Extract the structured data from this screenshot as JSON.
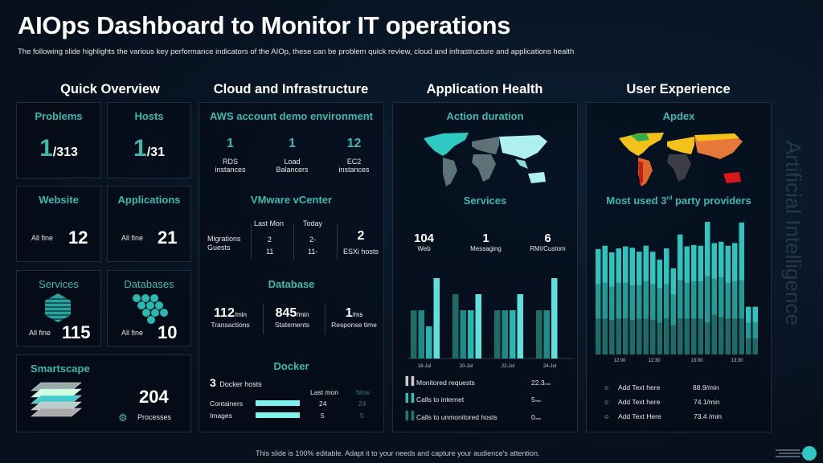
{
  "header": {
    "title": "AIOps Dashboard to Monitor IT operations",
    "subtitle": "The following  slide highlights the various  key performance  indicators of the AIOp, these can be problem  quick review,  cloud and infrastructure  and applications health"
  },
  "columns": [
    "Quick Overview",
    "Cloud and Infrastructure",
    "Application Health",
    "User Experience"
  ],
  "watermark": "Artificial Intelligence",
  "footer": "This slide is 100% editable. Adapt it to your needs and capture your audience's attention.",
  "colors": {
    "accent": "#3fb8ae",
    "bar_light": "#5ee0dc",
    "bar_dark": "#1f6b66"
  },
  "quick": {
    "problems": {
      "label": "Problems",
      "value": "1",
      "total": "/313"
    },
    "hosts": {
      "label": "Hosts",
      "value": "1",
      "total": "/31"
    },
    "website": {
      "label": "Website",
      "status": "All fine",
      "value": "12"
    },
    "applications": {
      "label": "Applications",
      "status": "All fine",
      "value": "21"
    },
    "services": {
      "label": "Services",
      "status": "All fine",
      "value": "115",
      "icon": "hexagon-cluster-icon"
    },
    "databases": {
      "label": "Databases",
      "status": "All fine",
      "value": "10",
      "icon": "hexagon-cluster-icon"
    },
    "smartscape": {
      "label": "Smartscape",
      "value": "204",
      "sub": "Processes",
      "icon": "layers-icon"
    }
  },
  "cloud": {
    "aws": {
      "title": "AWS account demo environment",
      "items": [
        {
          "value": "1",
          "l1": "RDS",
          "l2": "instances"
        },
        {
          "value": "1",
          "l1": "Load",
          "l2": "Balancers"
        },
        {
          "value": "12",
          "l1": "EC2",
          "l2": "instances"
        }
      ]
    },
    "vmware": {
      "title": "VMware vCenter",
      "col1": "Last Mon",
      "col2": "Today",
      "row1": "Migrations",
      "row2": "Guests",
      "lm1": "2",
      "lm2": "11",
      "td1": "2-",
      "td2": "11-",
      "esxi_value": "2",
      "esxi_label": "ESXi  hosts"
    },
    "database": {
      "title": "Database",
      "items": [
        {
          "value": "112",
          "unit": "/min",
          "label": "Transactions"
        },
        {
          "value": "845",
          "unit": "/min",
          "label": "Statements"
        },
        {
          "value": "1",
          "unit": "/ms",
          "label": "Response time"
        }
      ]
    },
    "docker": {
      "title": "Docker",
      "hosts_value": "3",
      "hosts_label": "Docker hosts",
      "col1": "Last mon",
      "col2": "Now",
      "rows": [
        {
          "label": "Containers",
          "last": "24",
          "now": "24"
        },
        {
          "label": "Images",
          "last": "5",
          "now": "5"
        }
      ]
    }
  },
  "apphealth": {
    "map_title": "Action duration",
    "services_title": "Services",
    "services": [
      {
        "value": "104",
        "label": "Web"
      },
      {
        "value": "1",
        "label": "Messaging"
      },
      {
        "value": "6",
        "label": "RMI/Custom"
      }
    ],
    "legend": [
      {
        "label": "Monitored requests",
        "value": "22.3",
        "unit": "/min"
      },
      {
        "label": "Calls to internet",
        "value": "5",
        "unit": "/min"
      },
      {
        "label": "Calls to unmonitored hosts",
        "value": "0",
        "unit": "/min"
      }
    ]
  },
  "userexp": {
    "map_title": "Apdex",
    "providers_title": "Most used 3",
    "providers_sup": "rd",
    "providers_rest": " party providers",
    "legend": [
      {
        "label": "Add Text here",
        "value": "88.9/min"
      },
      {
        "label": "Add Text here",
        "value": "74.1/min"
      },
      {
        "label": "Add Text Here",
        "value": "73.4 /min"
      }
    ]
  },
  "chart_data": [
    {
      "type": "bar",
      "categories": [
        "18-Jul",
        "20-Jul",
        "22-Jul",
        "24-Jul"
      ],
      "groups": [
        [
          60,
          60,
          40,
          100
        ],
        [
          80,
          60,
          60,
          80
        ],
        [
          60,
          60,
          60,
          80
        ],
        [
          60,
          60,
          100
        ]
      ],
      "ylim": [
        0,
        100
      ]
    },
    {
      "type": "bar",
      "stacked": true,
      "tick_labels": [
        "12:00",
        "12:30",
        "13:00",
        "13:30"
      ],
      "series": [
        {
          "values": [
            27,
            27,
            26,
            27,
            27,
            26,
            27,
            27,
            26,
            24,
            27,
            22,
            27,
            27,
            27,
            27,
            24,
            30,
            28,
            27,
            27,
            27,
            12,
            12
          ]
        },
        {
          "values": [
            26,
            27,
            25,
            27,
            27,
            26,
            25,
            28,
            27,
            26,
            26,
            23,
            29,
            27,
            28,
            28,
            35,
            27,
            30,
            27,
            28,
            29,
            12,
            12
          ]
        },
        {
          "values": [
            26.5,
            28,
            26,
            26,
            27.5,
            28.5,
            25.5,
            27,
            24.5,
            21.5,
            27,
            20,
            34.5,
            27.5,
            27.5,
            27,
            41,
            27,
            27,
            28,
            29,
            43.5,
            12,
            12
          ]
        }
      ],
      "ylim": [
        0,
        100
      ]
    }
  ]
}
